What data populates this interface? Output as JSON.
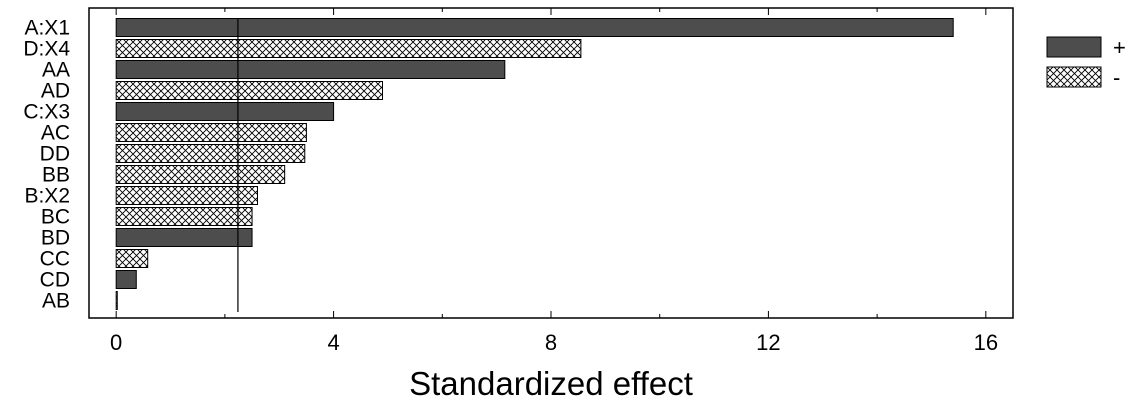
{
  "chart_data": {
    "type": "bar",
    "orientation": "horizontal",
    "title": "",
    "xlabel": "Standardized effect",
    "ylabel": "",
    "xlim": [
      -0.5,
      16.5
    ],
    "xticks": [
      "0",
      "4",
      "8",
      "12",
      "16"
    ],
    "xtick_values": [
      0,
      4,
      8,
      12,
      16
    ],
    "reference_line": 2.24,
    "grid": false,
    "legend_position": "right",
    "series": [
      {
        "name": "+",
        "color": "#4d4d4d",
        "pattern": "solid"
      },
      {
        "name": "-",
        "color": "#ffffff",
        "pattern": "crosshatch"
      }
    ],
    "categories": [
      "A:X1",
      "D:X4",
      "AA",
      "AD",
      "C:X3",
      "AC",
      "DD",
      "BB",
      "B:X2",
      "BC",
      "BD",
      "CC",
      "CD",
      "AB"
    ],
    "values": [
      15.4,
      8.55,
      7.15,
      4.9,
      4.0,
      3.5,
      3.47,
      3.1,
      2.6,
      2.5,
      2.5,
      0.58,
      0.37,
      0.02
    ],
    "signs": [
      "+",
      "-",
      "+",
      "-",
      "+",
      "-",
      "-",
      "-",
      "-",
      "-",
      "+",
      "-",
      "+",
      "-"
    ]
  }
}
